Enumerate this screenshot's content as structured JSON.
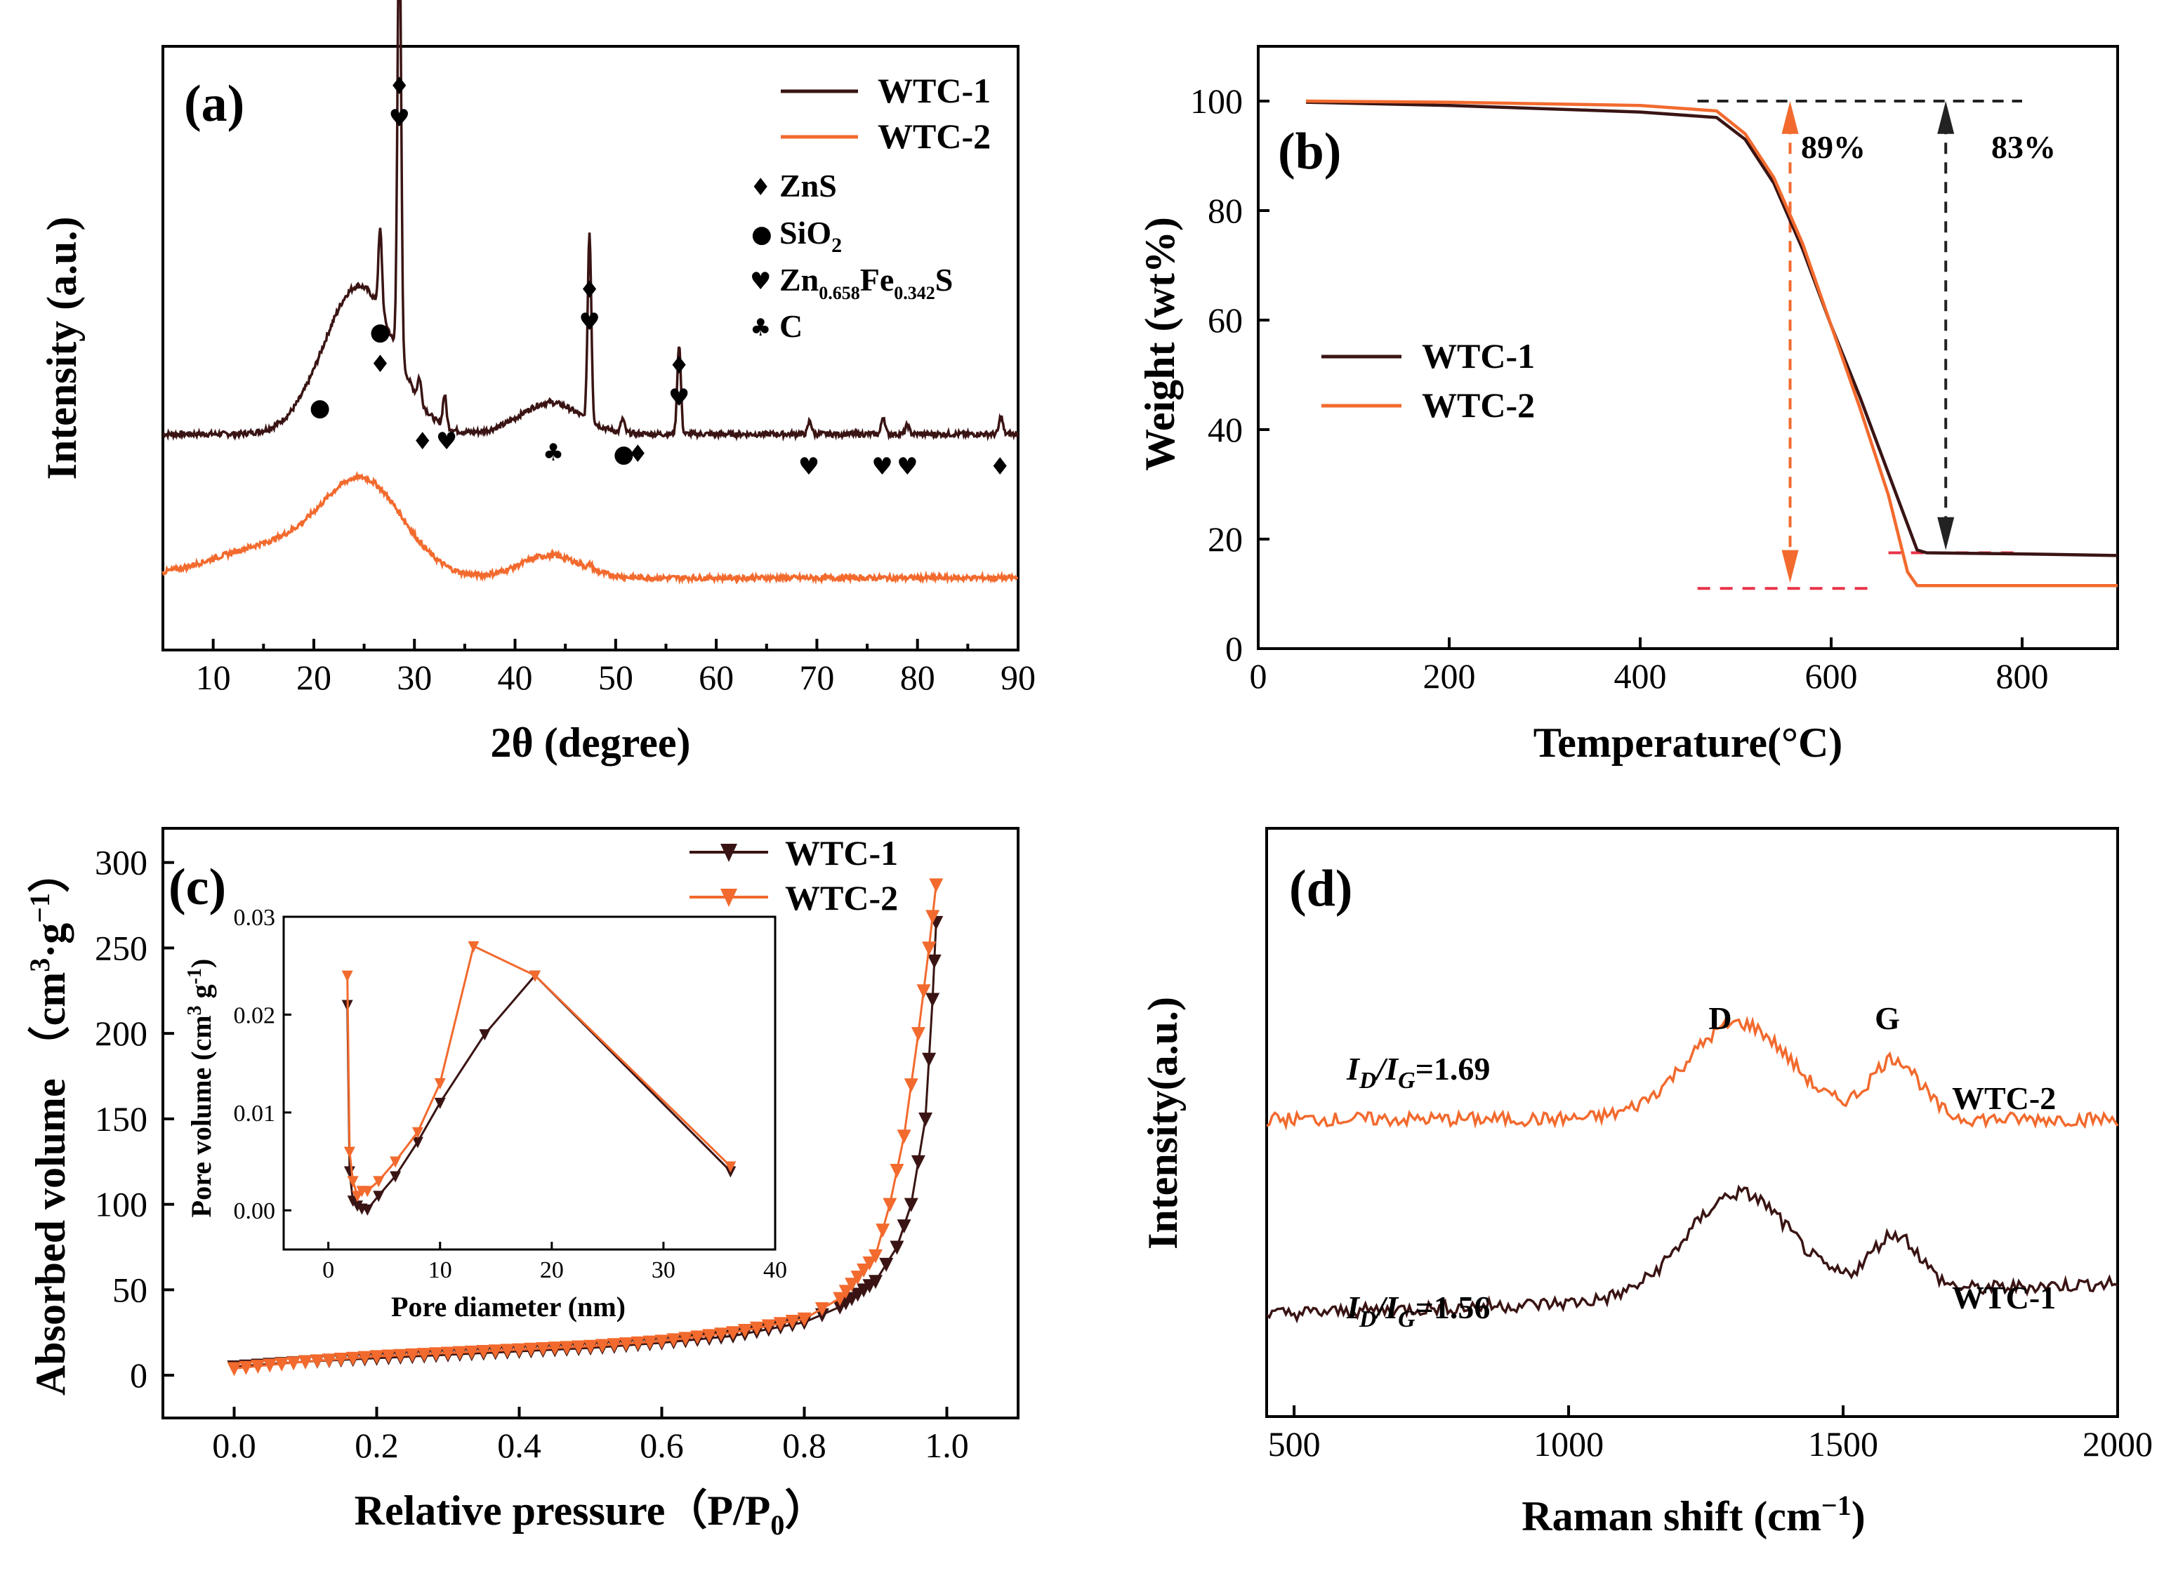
{
  "colors": {
    "wtc1": "#3a1414",
    "wtc2": "#f26a2e",
    "dashed_red": "#e8334a",
    "dashed_black": "#222222"
  },
  "chart_data": [
    {
      "id": "a",
      "type": "line",
      "panel_label": "(a)",
      "xlabel": "2θ (degree)",
      "ylabel": "Intensity (a.u.)",
      "xlim": [
        5,
        90
      ],
      "xticks": [
        "10",
        "20",
        "30",
        "40",
        "50",
        "60",
        "70",
        "80",
        "90"
      ],
      "legend": [
        "WTC-1",
        "WTC-2"
      ],
      "phase_legend": [
        {
          "symbol": "♦",
          "text": "ZnS"
        },
        {
          "symbol": "●",
          "text": "SiO",
          "sub": "2"
        },
        {
          "symbol": "♥",
          "text": "Zn",
          "sub": "0.658",
          "text2": "Fe",
          "sub2": "0.342",
          "text3": "S"
        },
        {
          "symbol": "♣",
          "text": "C"
        }
      ],
      "series": [
        {
          "name": "WTC-1",
          "offset": 0.32,
          "broad": [
            [
              24.5,
              0.33,
              3.5
            ],
            [
              43.5,
              0.07,
              3
            ]
          ],
          "peaks": [
            [
              26.6,
              0.18
            ],
            [
              28.5,
              1.0
            ],
            [
              30.5,
              0.05
            ],
            [
              33.0,
              0.07
            ],
            [
              47.4,
              0.42
            ],
            [
              50.7,
              0.03
            ],
            [
              56.3,
              0.2
            ],
            [
              69.3,
              0.03
            ],
            [
              76.6,
              0.04
            ],
            [
              79.0,
              0.02
            ],
            [
              88.3,
              0.04
            ]
          ]
        },
        {
          "name": "WTC-2",
          "offset": 0.0,
          "broad": [
            [
              25.0,
              0.2,
              4
            ],
            [
              16,
              0.07,
              6
            ],
            [
              43.5,
              0.05,
              3
            ]
          ],
          "peaks": [
            [
              47.5,
              0.01
            ]
          ]
        }
      ],
      "markers": [
        {
          "x": 20.6,
          "s": "●"
        },
        {
          "x": 26.6,
          "s": "♦"
        },
        {
          "x": 26.6,
          "s": "●"
        },
        {
          "x": 28.5,
          "s": "♥"
        },
        {
          "x": 28.5,
          "s": "♦"
        },
        {
          "x": 30.8,
          "s": "♦"
        },
        {
          "x": 33.2,
          "s": "♥"
        },
        {
          "x": 43.8,
          "s": "♣"
        },
        {
          "x": 47.4,
          "s": "♥"
        },
        {
          "x": 47.4,
          "s": "♦"
        },
        {
          "x": 50.8,
          "s": "●"
        },
        {
          "x": 52.2,
          "s": "♦"
        },
        {
          "x": 56.3,
          "s": "♥"
        },
        {
          "x": 56.3,
          "s": "♦"
        },
        {
          "x": 69.2,
          "s": "♥"
        },
        {
          "x": 76.5,
          "s": "♥"
        },
        {
          "x": 79.0,
          "s": "♥"
        },
        {
          "x": 88.2,
          "s": "♦"
        }
      ]
    },
    {
      "id": "b",
      "type": "line",
      "panel_label": "(b)",
      "xlabel": "Temperature(°C)",
      "ylabel": "Weight (wt%)",
      "xlim": [
        0,
        900
      ],
      "ylim": [
        0,
        110
      ],
      "xticks": [
        "0",
        "200",
        "400",
        "600",
        "800"
      ],
      "yticks": [
        "0",
        "20",
        "40",
        "60",
        "80",
        "100"
      ],
      "legend": [
        "WTC-1",
        "WTC-2"
      ],
      "annotations": [
        "89%",
        "83%"
      ],
      "series": [
        {
          "name": "WTC-1",
          "x": [
            50,
            200,
            400,
            480,
            510,
            540,
            570,
            600,
            630,
            660,
            690,
            700,
            800,
            900
          ],
          "y": [
            99.8,
            99.2,
            98.0,
            97.0,
            93,
            85,
            73,
            59,
            46,
            32,
            18,
            17.5,
            17.3,
            17.0
          ]
        },
        {
          "name": "WTC-2",
          "x": [
            50,
            200,
            400,
            480,
            510,
            540,
            570,
            600,
            630,
            660,
            680,
            690,
            800,
            900
          ],
          "y": [
            100,
            99.8,
            99.2,
            98.2,
            94,
            86,
            74,
            59,
            44,
            28,
            14,
            11.5,
            11.5,
            11.5
          ]
        }
      ]
    },
    {
      "id": "c",
      "type": "scatter",
      "panel_label": "(c)",
      "xlabel": "Relative pressure（P/P",
      "xlabel_sub": "0",
      "xlabel_end": "）",
      "ylabel": "Absorbed volume （cm",
      "xlim": [
        -0.1,
        1.1
      ],
      "ylim": [
        -25,
        320
      ],
      "xticks": [
        "0.0",
        "0.2",
        "0.4",
        "0.6",
        "0.8",
        "1.0"
      ],
      "yticks": [
        "0",
        "50",
        "100",
        "150",
        "200",
        "250",
        "300"
      ],
      "legend": [
        "WTC-1",
        "WTC-2"
      ],
      "series": [
        {
          "name": "WTC-1",
          "x": [
            0.0,
            0.1,
            0.2,
            0.3,
            0.4,
            0.5,
            0.6,
            0.7,
            0.8,
            0.85,
            0.9,
            0.93,
            0.95,
            0.97,
            0.98,
            0.985
          ],
          "y": [
            5,
            8,
            10,
            12,
            14,
            16,
            19,
            23,
            31,
            40,
            55,
            75,
            100,
            150,
            220,
            265
          ]
        },
        {
          "name": "WTC-2",
          "x": [
            0.0,
            0.1,
            0.2,
            0.3,
            0.4,
            0.5,
            0.6,
            0.7,
            0.8,
            0.85,
            0.9,
            0.92,
            0.94,
            0.96,
            0.975,
            0.985
          ],
          "y": [
            4,
            8,
            11,
            13,
            15,
            17,
            20,
            25,
            33,
            45,
            70,
            100,
            140,
            200,
            250,
            287
          ]
        }
      ],
      "inset": {
        "xlabel": "Pore diameter (nm)",
        "ylabel": "Pore volume (cm",
        "xlim": [
          -4,
          40
        ],
        "ylim": [
          -0.004,
          0.03
        ],
        "xticks": [
          "0",
          "10",
          "20",
          "30",
          "40"
        ],
        "yticks": [
          "0.00",
          "0.01",
          "0.02",
          "0.03"
        ],
        "series": [
          {
            "name": "WTC-1",
            "x": [
              1.7,
              1.9,
              2.2,
              2.6,
              3.0,
              3.5,
              4.5,
              6,
              8,
              10,
              14,
              18.5,
              36
            ],
            "y": [
              0.021,
              0.004,
              0.001,
              0.0005,
              0.0002,
              0.0001,
              0.0015,
              0.0035,
              0.007,
              0.011,
              0.018,
              0.024,
              0.004
            ]
          },
          {
            "name": "WTC-2",
            "x": [
              1.7,
              1.9,
              2.2,
              2.6,
              3.0,
              3.5,
              4.5,
              6,
              8,
              10,
              13,
              18.5,
              36
            ],
            "y": [
              0.024,
              0.006,
              0.003,
              0.0015,
              0.002,
              0.002,
              0.003,
              0.005,
              0.008,
              0.013,
              0.027,
              0.024,
              0.0045
            ]
          }
        ]
      }
    },
    {
      "id": "d",
      "type": "line",
      "panel_label": "(d)",
      "xlabel": "Raman shift (cm",
      "ylabel": "Intensity(a.u.)",
      "xlim": [
        450,
        2000
      ],
      "xticks": [
        "500",
        "1000",
        "1500",
        "2000"
      ],
      "peak_labels": [
        "D",
        "G"
      ],
      "ratios": [
        {
          "series": "WTC-2",
          "text": "=1.69"
        },
        {
          "series": "WTC-1",
          "text": "=1.56"
        }
      ],
      "series": [
        {
          "name": "WTC-2",
          "baseline": 0.58,
          "D": 0.24,
          "G": 0.15,
          "trend": 0.0
        },
        {
          "name": "WTC-1",
          "baseline": 0.12,
          "D": 0.26,
          "G": 0.14,
          "trend": 0.05
        }
      ]
    }
  ]
}
